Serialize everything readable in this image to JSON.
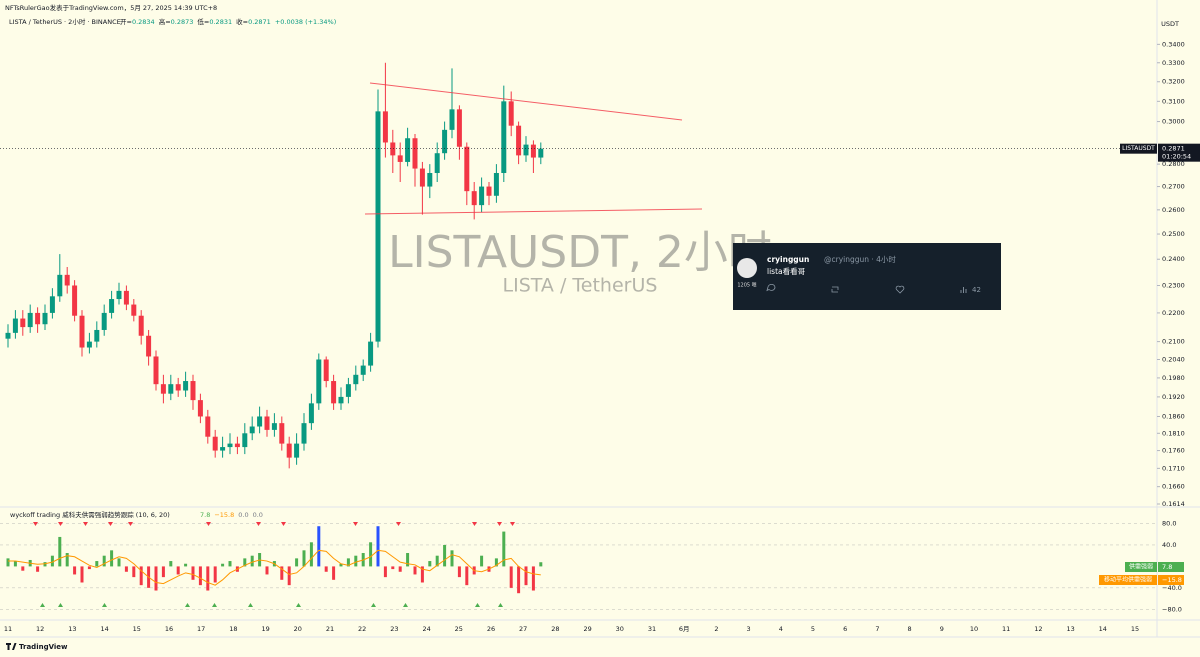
{
  "header": {
    "attribution": "NFTsRulerGao发表于TradingView.com，5月 27, 2025 14:39 UTC+8",
    "symbol": "LISTA / TetherUS · 2小时 · BINANCE",
    "ohlc": [
      {
        "label": "开=",
        "value": "0.2834"
      },
      {
        "label": "高=",
        "value": "0.2873"
      },
      {
        "label": "低=",
        "value": "0.2831"
      },
      {
        "label": "收=",
        "value": "0.2871"
      }
    ],
    "change": "+0.0038 (+1.34%)",
    "currency": "USDT",
    "ticker": "LISTAUSDT",
    "countdown": "01:20:54"
  },
  "watermark": {
    "title": "LISTAUSDT, 2小时",
    "subtitle": "LISTA / TetherUS"
  },
  "tweet": {
    "name": "cryinggun",
    "handle": "@cryinggun · 4小时",
    "text": "lista看看哥",
    "avatar_caption": "1205 嗯",
    "views": "42"
  },
  "chart_data": [
    {
      "type": "candlestick",
      "log_scale": true,
      "up_color": "#089981",
      "down_color": "#f23645",
      "ylim": [
        0.1614,
        0.348
      ],
      "yticks": [
        {
          "value": 0.34,
          "label": "0.3400"
        },
        {
          "value": 0.33,
          "label": "0.3300"
        },
        {
          "value": 0.32,
          "label": "0.3200"
        },
        {
          "value": 0.31,
          "label": "0.3100"
        },
        {
          "value": 0.3,
          "label": "0.3000"
        },
        {
          "value": 0.28,
          "label": "0.2800"
        },
        {
          "value": 0.27,
          "label": "0.2700"
        },
        {
          "value": 0.26,
          "label": "0.2600"
        },
        {
          "value": 0.25,
          "label": "0.2500"
        },
        {
          "value": 0.24,
          "label": "0.2400"
        },
        {
          "value": 0.23,
          "label": "0.2300"
        },
        {
          "value": 0.22,
          "label": "0.2200"
        },
        {
          "value": 0.21,
          "label": "0.2100"
        },
        {
          "value": 0.204,
          "label": "0.2040"
        },
        {
          "value": 0.198,
          "label": "0.1980"
        },
        {
          "value": 0.192,
          "label": "0.1920"
        },
        {
          "value": 0.186,
          "label": "0.1860"
        },
        {
          "value": 0.181,
          "label": "0.1810"
        },
        {
          "value": 0.176,
          "label": "0.1760"
        },
        {
          "value": 0.171,
          "label": "0.1710"
        },
        {
          "value": 0.166,
          "label": "0.1660"
        },
        {
          "value": 0.1614,
          "label": "0.1614"
        }
      ],
      "x_labels": [
        "11",
        "12",
        "13",
        "14",
        "15",
        "16",
        "17",
        "18",
        "19",
        "20",
        "21",
        "22",
        "23",
        "24",
        "25",
        "26",
        "27",
        "28",
        "29",
        "30",
        "31",
        "6月",
        "2",
        "3",
        "4",
        "5",
        "6",
        "7",
        "8",
        "9",
        "10",
        "11",
        "12",
        "13",
        "14",
        "15"
      ],
      "candles": {
        "open": [
          0.211,
          0.213,
          0.218,
          0.215,
          0.22,
          0.216,
          0.22,
          0.226,
          0.234,
          0.23,
          0.219,
          0.208,
          0.21,
          0.214,
          0.22,
          0.225,
          0.228,
          0.223,
          0.219,
          0.212,
          0.205,
          0.196,
          0.193,
          0.196,
          0.194,
          0.197,
          0.191,
          0.186,
          0.18,
          0.176,
          0.177,
          0.178,
          0.177,
          0.181,
          0.183,
          0.186,
          0.182,
          0.184,
          0.178,
          0.174,
          0.178,
          0.184,
          0.19,
          0.204,
          0.197,
          0.19,
          0.192,
          0.196,
          0.199,
          0.202,
          0.21,
          0.305,
          0.29,
          0.284,
          0.281,
          0.292,
          0.278,
          0.27,
          0.276,
          0.285,
          0.296,
          0.306,
          0.288,
          0.268,
          0.262,
          0.27,
          0.266,
          0.276,
          0.31,
          0.298,
          0.284,
          0.289,
          0.283
        ],
        "high": [
          0.216,
          0.221,
          0.221,
          0.223,
          0.222,
          0.223,
          0.229,
          0.242,
          0.237,
          0.232,
          0.221,
          0.213,
          0.217,
          0.223,
          0.228,
          0.231,
          0.23,
          0.225,
          0.221,
          0.214,
          0.207,
          0.199,
          0.199,
          0.198,
          0.2,
          0.199,
          0.193,
          0.188,
          0.182,
          0.18,
          0.181,
          0.18,
          0.184,
          0.186,
          0.189,
          0.188,
          0.187,
          0.186,
          0.18,
          0.181,
          0.187,
          0.193,
          0.206,
          0.205,
          0.199,
          0.195,
          0.198,
          0.202,
          0.204,
          0.213,
          0.316,
          0.33,
          0.296,
          0.29,
          0.297,
          0.294,
          0.281,
          0.28,
          0.29,
          0.3,
          0.327,
          0.308,
          0.29,
          0.272,
          0.274,
          0.272,
          0.28,
          0.318,
          0.315,
          0.3,
          0.293,
          0.291,
          0.29
        ],
        "low": [
          0.208,
          0.211,
          0.212,
          0.213,
          0.213,
          0.214,
          0.218,
          0.224,
          0.227,
          0.217,
          0.205,
          0.206,
          0.208,
          0.212,
          0.218,
          0.223,
          0.221,
          0.217,
          0.209,
          0.202,
          0.194,
          0.19,
          0.191,
          0.192,
          0.192,
          0.188,
          0.184,
          0.178,
          0.174,
          0.174,
          0.175,
          0.175,
          0.175,
          0.179,
          0.181,
          0.18,
          0.18,
          0.176,
          0.171,
          0.172,
          0.176,
          0.182,
          0.188,
          0.195,
          0.188,
          0.188,
          0.19,
          0.194,
          0.197,
          0.2,
          0.208,
          0.283,
          0.276,
          0.272,
          0.279,
          0.27,
          0.258,
          0.265,
          0.272,
          0.282,
          0.292,
          0.282,
          0.262,
          0.256,
          0.259,
          0.262,
          0.263,
          0.272,
          0.293,
          0.28,
          0.281,
          0.276,
          0.28
        ],
        "close": [
          0.213,
          0.218,
          0.215,
          0.22,
          0.216,
          0.22,
          0.226,
          0.234,
          0.23,
          0.219,
          0.208,
          0.21,
          0.214,
          0.22,
          0.225,
          0.228,
          0.223,
          0.219,
          0.212,
          0.205,
          0.196,
          0.193,
          0.196,
          0.194,
          0.197,
          0.191,
          0.186,
          0.18,
          0.176,
          0.177,
          0.178,
          0.177,
          0.181,
          0.183,
          0.186,
          0.182,
          0.184,
          0.178,
          0.174,
          0.178,
          0.184,
          0.19,
          0.204,
          0.197,
          0.19,
          0.192,
          0.196,
          0.199,
          0.202,
          0.21,
          0.305,
          0.29,
          0.284,
          0.281,
          0.292,
          0.278,
          0.27,
          0.276,
          0.285,
          0.296,
          0.306,
          0.288,
          0.268,
          0.262,
          0.27,
          0.266,
          0.276,
          0.31,
          0.298,
          0.284,
          0.289,
          0.283,
          0.2871
        ]
      }
    },
    {
      "type": "histogram",
      "title": "wyckoff trading 威科夫供需强弱趋势跟踪 (10, 6, 20)",
      "legend_values": [
        "7.8",
        "−15.8",
        "0.0",
        "0.0"
      ],
      "ylim": [
        -100,
        109
      ],
      "yticks": [
        {
          "value": 80,
          "label": "80.0"
        },
        {
          "value": 40,
          "label": "40.0"
        },
        {
          "value": -40,
          "label": "−40.0"
        },
        {
          "value": -80,
          "label": "−80.0"
        }
      ],
      "series": [
        {
          "name": "供需强弱",
          "color": "#4caf50",
          "negative_color": "#f23645",
          "spike_color": "#2952ff",
          "values": [
            15,
            10,
            -8,
            12,
            -10,
            8,
            20,
            55,
            25,
            -15,
            -30,
            -5,
            10,
            20,
            30,
            15,
            -10,
            -20,
            -35,
            -40,
            -45,
            -20,
            10,
            -15,
            5,
            -25,
            -35,
            -45,
            -30,
            5,
            10,
            -10,
            15,
            20,
            25,
            -15,
            10,
            -25,
            -35,
            15,
            30,
            45,
            75,
            -10,
            -25,
            5,
            15,
            20,
            25,
            45,
            75,
            -20,
            -5,
            -10,
            25,
            -15,
            -30,
            10,
            20,
            40,
            30,
            -20,
            -35,
            -15,
            20,
            -10,
            15,
            65,
            -40,
            -50,
            -35,
            -45,
            7.8
          ]
        },
        {
          "name": "移动平均供需强弱",
          "color": "#ff9800",
          "values": [
            10,
            10,
            8,
            6,
            4,
            5,
            8,
            15,
            20,
            18,
            10,
            2,
            -2,
            5,
            12,
            18,
            15,
            5,
            -8,
            -20,
            -30,
            -32,
            -25,
            -18,
            -12,
            -15,
            -22,
            -30,
            -35,
            -25,
            -12,
            -5,
            2,
            8,
            12,
            10,
            5,
            -5,
            -15,
            -12,
            0,
            15,
            30,
            28,
            15,
            5,
            2,
            8,
            12,
            18,
            30,
            28,
            18,
            8,
            5,
            3,
            -5,
            -8,
            2,
            12,
            22,
            18,
            5,
            -8,
            -10,
            -5,
            2,
            12,
            15,
            0,
            -10,
            -14,
            -15.8
          ]
        }
      ]
    }
  ]
}
